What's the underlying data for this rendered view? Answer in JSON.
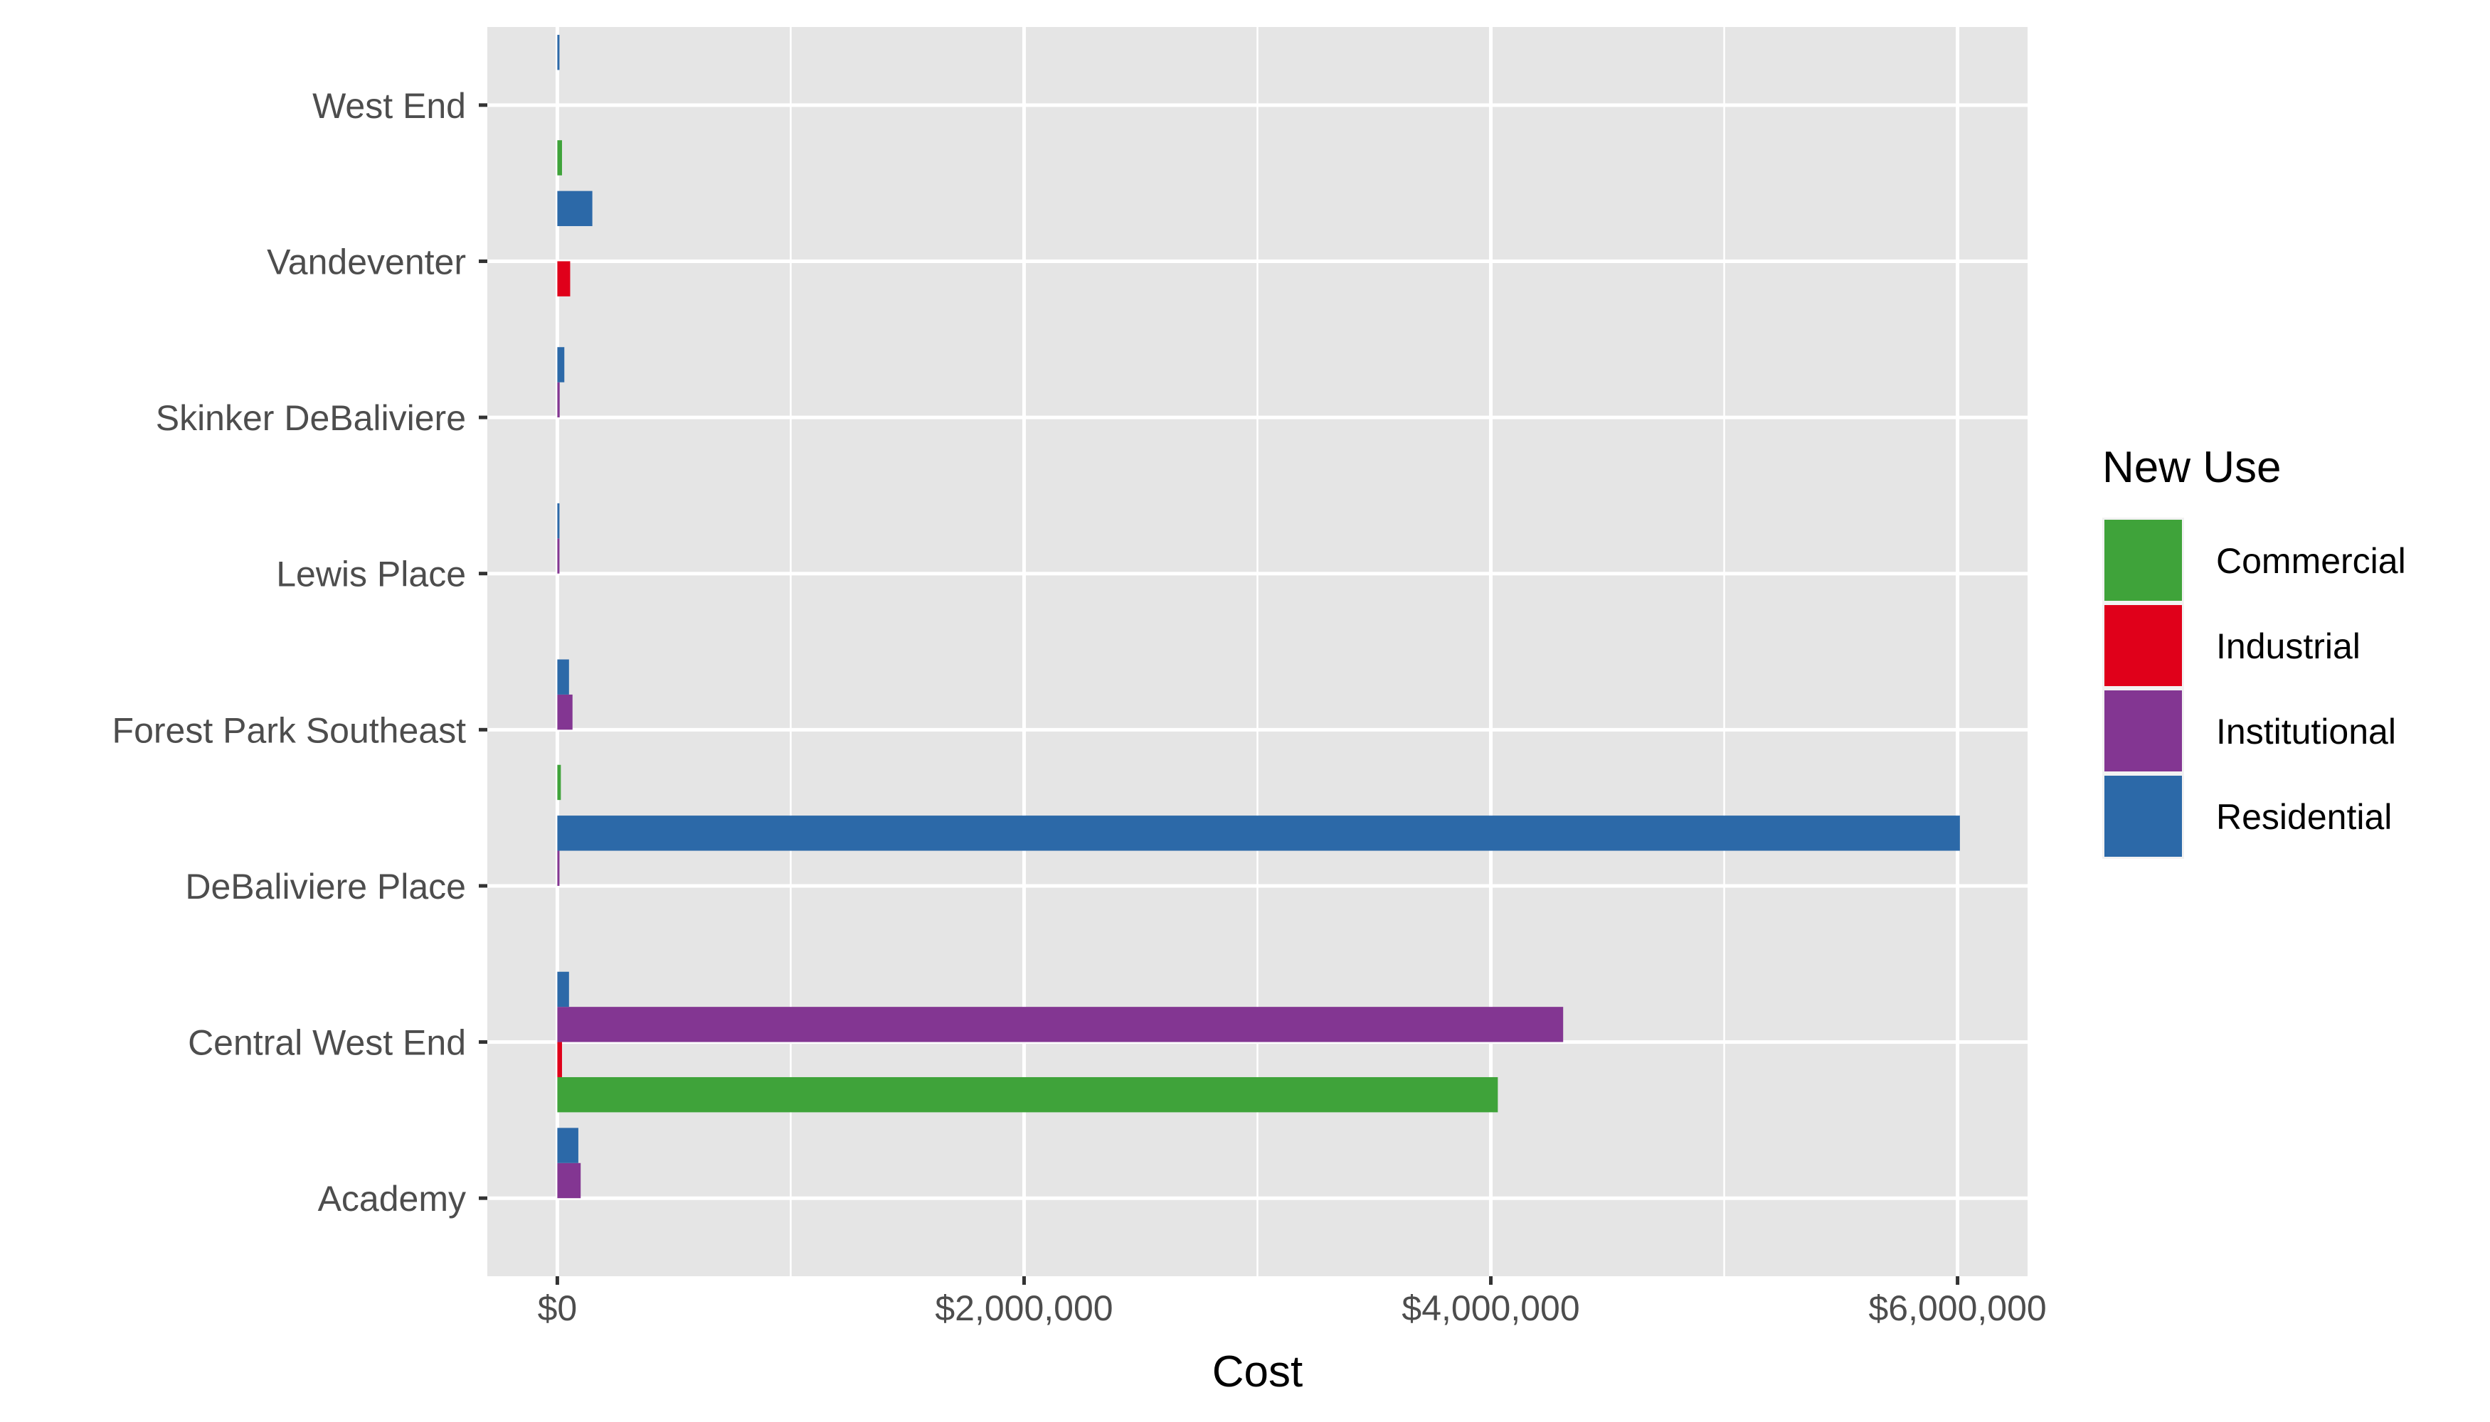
{
  "chart_data": {
    "type": "bar",
    "orientation": "horizontal",
    "title": "",
    "xlabel": "Cost",
    "ylabel": "",
    "xlim": [
      -300000,
      6300000
    ],
    "x_ticks": [
      {
        "value": 0,
        "label": "$0"
      },
      {
        "value": 2000000,
        "label": "$2,000,000"
      },
      {
        "value": 4000000,
        "label": "$4,000,000"
      },
      {
        "value": 6000000,
        "label": "$6,000,000"
      }
    ],
    "categories": [
      "Academy",
      "Central West End",
      "DeBaliviere Place",
      "Forest Park Southeast",
      "Lewis Place",
      "Skinker DeBaliviere",
      "Vandeventer",
      "West End"
    ],
    "bars": [
      {
        "category": "Academy",
        "series": "Institutional",
        "value": 100000
      },
      {
        "category": "Academy",
        "series": "Residential",
        "value": 90000
      },
      {
        "category": "Central West End",
        "series": "Commercial",
        "value": 4030000
      },
      {
        "category": "Central West End",
        "series": "Industrial",
        "value": 20000
      },
      {
        "category": "Central West End",
        "series": "Institutional",
        "value": 4310000
      },
      {
        "category": "Central West End",
        "series": "Residential",
        "value": 50000
      },
      {
        "category": "DeBaliviere Place",
        "series": "Institutional",
        "value": 8000
      },
      {
        "category": "DeBaliviere Place",
        "series": "Residential",
        "value": 6010000
      },
      {
        "category": "Forest Park Southeast",
        "series": "Commercial",
        "value": 15000
      },
      {
        "category": "Forest Park Southeast",
        "series": "Institutional",
        "value": 65000
      },
      {
        "category": "Forest Park Southeast",
        "series": "Residential",
        "value": 50000
      },
      {
        "category": "Lewis Place",
        "series": "Institutional",
        "value": 3000
      },
      {
        "category": "Lewis Place",
        "series": "Residential",
        "value": 3000
      },
      {
        "category": "Skinker DeBaliviere",
        "series": "Institutional",
        "value": 10000
      },
      {
        "category": "Skinker DeBaliviere",
        "series": "Residential",
        "value": 30000
      },
      {
        "category": "Vandeventer",
        "series": "Industrial",
        "value": 55000
      },
      {
        "category": "Vandeventer",
        "series": "Residential",
        "value": 150000
      },
      {
        "category": "West End",
        "series": "Commercial",
        "value": 20000
      },
      {
        "category": "West End",
        "series": "Residential",
        "value": 3000
      }
    ],
    "legend": {
      "title": "New Use",
      "placement": "right",
      "items": [
        {
          "name": "Commercial",
          "color": "#3fa33a"
        },
        {
          "name": "Industrial",
          "color": "#e0001a"
        },
        {
          "name": "Institutional",
          "color": "#833692"
        },
        {
          "name": "Residential",
          "color": "#2c69a8"
        }
      ]
    },
    "panel_background": "#e5e5e5",
    "grid": true
  }
}
